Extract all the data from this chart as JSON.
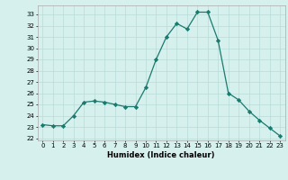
{
  "x": [
    0,
    1,
    2,
    3,
    4,
    5,
    6,
    7,
    8,
    9,
    10,
    11,
    12,
    13,
    14,
    15,
    16,
    17,
    18,
    19,
    20,
    21,
    22,
    23
  ],
  "y": [
    23.2,
    23.1,
    23.1,
    24.0,
    25.2,
    25.3,
    25.2,
    25.0,
    24.8,
    24.8,
    26.5,
    29.0,
    31.0,
    32.2,
    31.7,
    33.2,
    33.2,
    30.7,
    26.0,
    25.4,
    24.4,
    23.6,
    22.9,
    22.2
  ],
  "line_color": "#1a7a6e",
  "marker": "D",
  "marker_size": 2.2,
  "bg_color": "#d6f0ee",
  "grid_color": "#b8dbd8",
  "xlabel": "Humidex (Indice chaleur)",
  "ylim": [
    21.8,
    33.8
  ],
  "yticks": [
    22,
    23,
    24,
    25,
    26,
    27,
    28,
    29,
    30,
    31,
    32,
    33
  ],
  "xticks": [
    0,
    1,
    2,
    3,
    4,
    5,
    6,
    7,
    8,
    9,
    10,
    11,
    12,
    13,
    14,
    15,
    16,
    17,
    18,
    19,
    20,
    21,
    22,
    23
  ],
  "xlim": [
    -0.5,
    23.5
  ]
}
